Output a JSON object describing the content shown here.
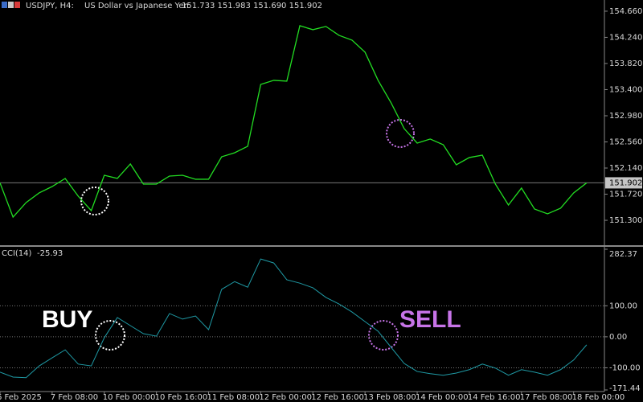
{
  "chart_data": [
    {
      "type": "line",
      "title": "USDJPY, H4:",
      "subtitle": "US Dollar vs Japanese Yen",
      "quote": "151.733 151.983 151.690 151.902",
      "color": "#22dd22",
      "grid": false,
      "values": [
        151.902,
        151.352,
        151.585,
        151.74,
        151.843,
        151.973,
        151.688,
        151.456,
        152.024,
        151.973,
        152.205,
        151.882,
        151.882,
        152.011,
        152.024,
        151.96,
        151.96,
        152.321,
        152.386,
        152.489,
        153.484,
        153.549,
        153.536,
        154.427,
        154.363,
        154.415,
        154.272,
        154.195,
        154.001,
        153.549,
        153.187,
        152.774,
        152.541,
        152.606,
        152.515,
        152.192,
        152.309,
        152.347,
        151.882,
        151.546,
        151.818,
        151.482,
        151.404,
        151.495,
        151.74,
        151.902
      ],
      "current": 151.902,
      "ylim": [
        150.9,
        154.84
      ],
      "yticks": [
        {
          "value": 154.66,
          "label": "154.660"
        },
        {
          "value": 154.24,
          "label": "154.240"
        },
        {
          "value": 153.82,
          "label": "153.820"
        },
        {
          "value": 153.4,
          "label": "153.400"
        },
        {
          "value": 152.98,
          "label": "152.980"
        },
        {
          "value": 152.56,
          "label": "152.560"
        },
        {
          "value": 152.14,
          "label": "152.140"
        },
        {
          "value": 151.72,
          "label": "151.720"
        },
        {
          "value": 151.3,
          "label": "151.300"
        }
      ],
      "annotations": [
        "BUY",
        "SELL"
      ]
    },
    {
      "type": "line",
      "title": "CCI(14)",
      "color": "#1f9aa5",
      "grid": true,
      "categories": [
        "6 Feb 2025",
        null,
        null,
        null,
        "7 Feb 08:00",
        null,
        null,
        null,
        "10 Feb 00:00",
        null,
        null,
        null,
        "10 Feb 16:00",
        null,
        null,
        null,
        "11 Feb 08:00",
        null,
        null,
        null,
        "12 Feb 00:00",
        null,
        null,
        null,
        "12 Feb 16:00",
        null,
        null,
        null,
        "13 Feb 08:00",
        null,
        null,
        null,
        "14 Feb 00:00",
        null,
        null,
        null,
        "14 Feb 16:00",
        null,
        null,
        null,
        "17 Feb 08:00",
        null,
        null,
        null,
        "18 Feb 00:00",
        null
      ],
      "values": [
        -114,
        -130,
        -132,
        -94,
        -68,
        -42,
        -88,
        -94,
        -3,
        62,
        36,
        10,
        2,
        75,
        57,
        67,
        23,
        153,
        178,
        160,
        251,
        238,
        184,
        173,
        158,
        127,
        106,
        80,
        49,
        18,
        -34,
        -86,
        -112,
        -119,
        -124,
        -117,
        -106,
        -88,
        -101,
        -124,
        -106,
        -114,
        -124,
        -106,
        -75,
        -25.93
      ],
      "ylim": [
        -171.44,
        282.37
      ],
      "yticks": [
        282.37,
        {
          "value": 100,
          "label": "100.00"
        },
        {
          "value": 0,
          "label": "0.00"
        },
        {
          "value": -100,
          "label": "-100.00"
        },
        -171.44
      ]
    }
  ]
}
